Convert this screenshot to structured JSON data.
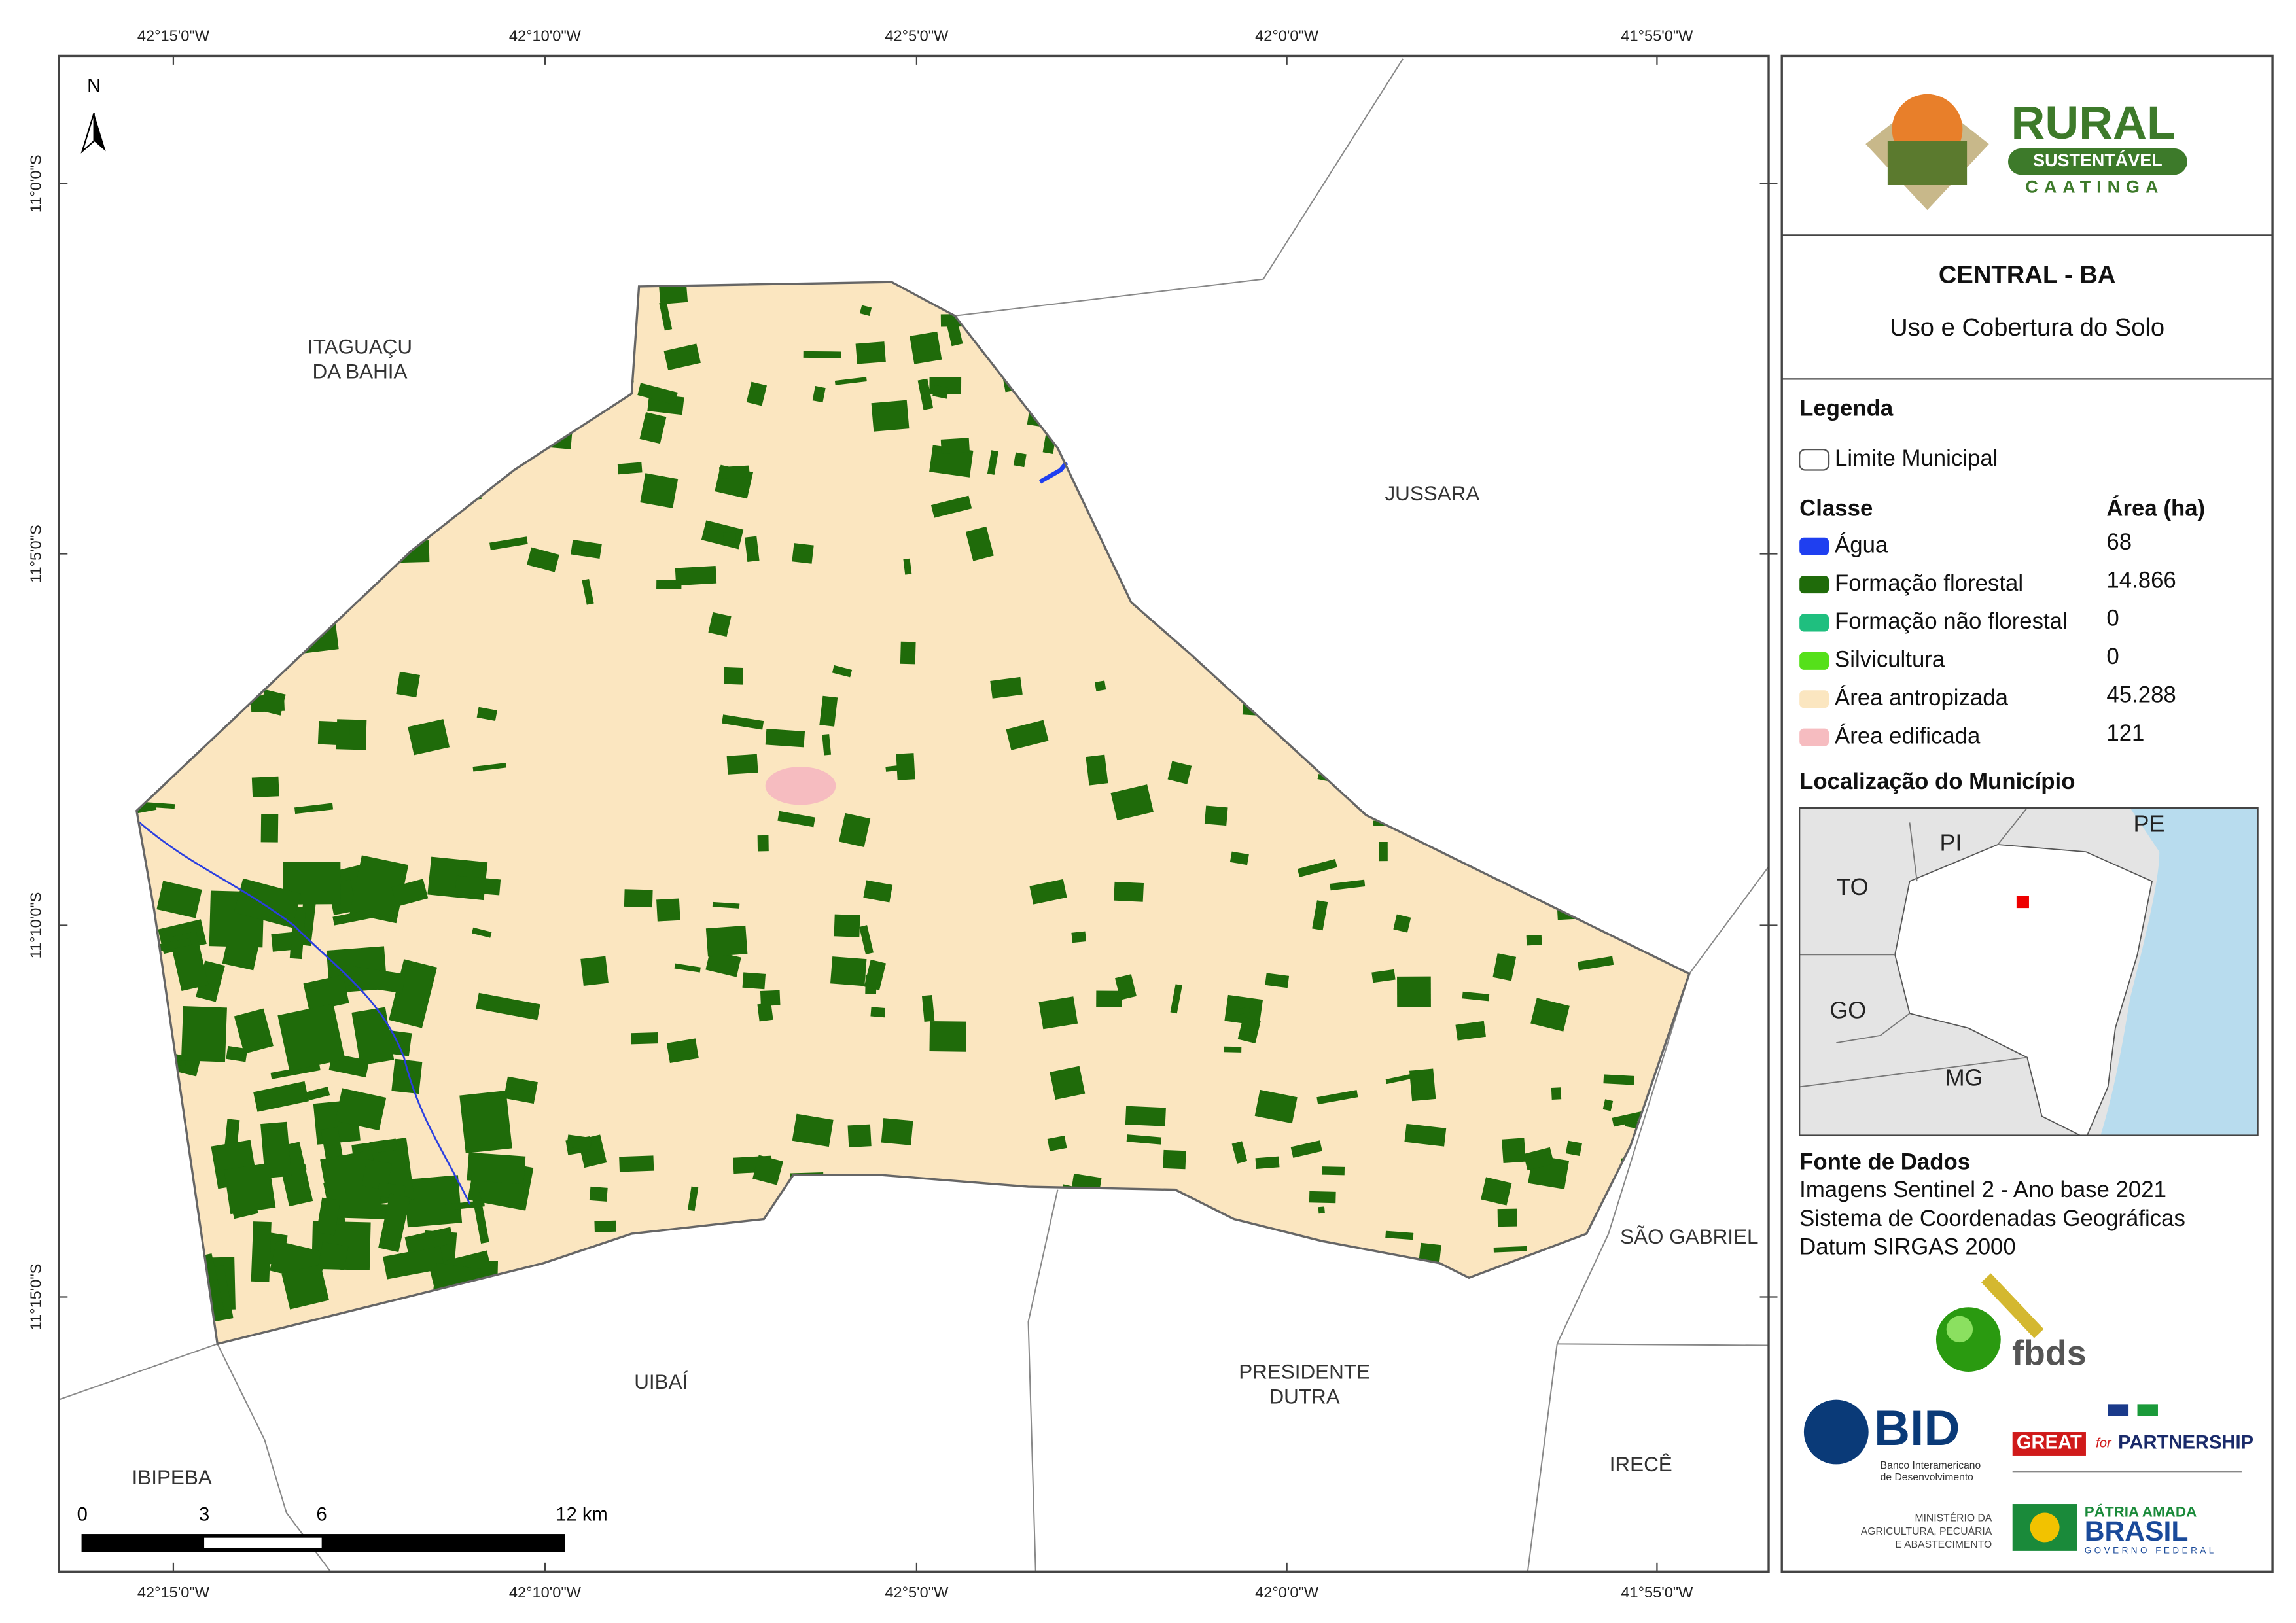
{
  "map": {
    "lon_labels": [
      "42°15'0\"W",
      "42°10'0\"W",
      "42°5'0\"W",
      "42°0'0\"W",
      "41°55'0\"W"
    ],
    "lat_labels": [
      "11°0'0\"S",
      "11°5'0\"S",
      "11°10'0\"S",
      "11°15'0\"S"
    ],
    "north": "N",
    "neighbors": [
      {
        "lines": [
          "ITAGUAÇU",
          "DA BAHIA"
        ]
      },
      {
        "lines": [
          "JUSSARA"
        ]
      },
      {
        "lines": [
          "SÃO GABRIEL"
        ]
      },
      {
        "lines": [
          "UIBAÍ"
        ]
      },
      {
        "lines": [
          "PRESIDENTE",
          "DUTRA"
        ]
      },
      {
        "lines": [
          "IRECÊ"
        ]
      },
      {
        "lines": [
          "IBIPEBA"
        ]
      }
    ],
    "scale_labels": [
      "0",
      "3",
      "6",
      "12 km"
    ]
  },
  "panel": {
    "logo": {
      "name": "RURAL",
      "sub": "SUSTENTÁVEL",
      "region": "CAATINGA"
    },
    "title": "CENTRAL - BA",
    "subtitle": "Uso e Cobertura do Solo",
    "legend": {
      "title": "Legenda",
      "boundary": "Limite Municipal",
      "class_header": "Classe",
      "area_header": "Área (ha)",
      "items": [
        {
          "label": "Água",
          "area": "68",
          "color": "#1f3ff0"
        },
        {
          "label": "Formação florestal",
          "area": "14.866",
          "color": "#1f6b0a"
        },
        {
          "label": "Formação não florestal",
          "area": "0",
          "color": "#1fbf7f"
        },
        {
          "label": "Silvicultura",
          "area": "0",
          "color": "#55e01a"
        },
        {
          "label": "Área antropizada",
          "area": "45.288",
          "color": "#fbe6c0"
        },
        {
          "label": "Área edificada",
          "area": "121",
          "color": "#f6bcc0"
        }
      ]
    },
    "location": {
      "title": "Localização do Município",
      "states": [
        "PI",
        "PE",
        "TO",
        "GO",
        "MG"
      ]
    },
    "source": {
      "title": "Fonte de Dados",
      "lines": [
        "Imagens Sentinel 2 - Ano base 2021",
        "Sistema de Coordenadas Geográficas",
        "Datum SIRGAS 2000"
      ]
    },
    "partners": {
      "fbds": "fbds",
      "bid": "BID",
      "bid_name": [
        "Banco Interamericano",
        "de Desenvolvimento"
      ],
      "great": "GREAT",
      "great_for": "for",
      "great_partnership": "PARTNERSHIP",
      "ministry": [
        "MINISTÉRIO DA",
        "AGRICULTURA, PECUÁRIA",
        "E ABASTECIMENTO"
      ],
      "gov": [
        "PÁTRIA AMADA",
        "BRASIL",
        "GOVERNO FEDERAL"
      ]
    }
  }
}
